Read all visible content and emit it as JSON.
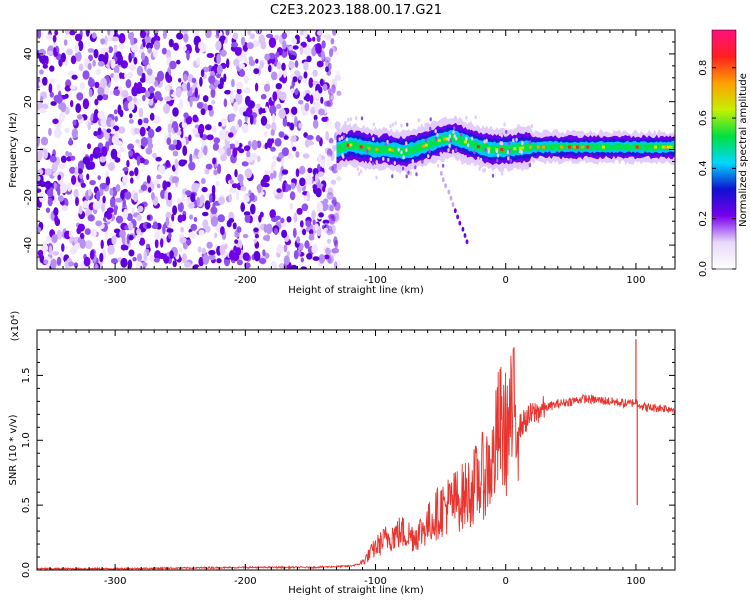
{
  "title": "C2E3.2023.188.00.17.G21",
  "colors": {
    "snr_line": "#e8352f",
    "colorbar_stops": [
      "#ffffff",
      "#e8d8fa",
      "#7700ee",
      "#1010d0",
      "#00d8ff",
      "#00e040",
      "#c8f000",
      "#ffa000",
      "#ff2020",
      "#ff1080"
    ]
  },
  "chart_data": [
    {
      "type": "heatmap",
      "name": "spectrogram",
      "xlabel": "Height of straight line (km)",
      "ylabel": "Frequency (Hz)",
      "xlim": [
        -360,
        130
      ],
      "ylim": [
        -50,
        50
      ],
      "xticks": [
        -300,
        -200,
        -100,
        0,
        100
      ],
      "yticks": [
        -40,
        -20,
        0,
        20,
        40
      ],
      "xtick_labels": [
        "-300",
        "-200",
        "-100",
        "0",
        "100"
      ],
      "ytick_labels": [
        "-40",
        "-20",
        "0",
        "20",
        "40"
      ],
      "noise_region_x": [
        -360,
        -128
      ],
      "signal_track": {
        "x": [
          -130,
          -120,
          -110,
          -100,
          -90,
          -80,
          -70,
          -60,
          -50,
          -40,
          -30,
          -20,
          -10,
          0,
          20,
          40,
          60,
          80,
          100,
          130
        ],
        "freq": [
          0,
          2,
          1,
          0,
          0,
          -1,
          0,
          2,
          4,
          5,
          3,
          1,
          0,
          0,
          1,
          1,
          1,
          1,
          1,
          1
        ]
      },
      "colorbar": {
        "label": "Normalized spectral amplitude",
        "range": [
          0,
          0.95
        ],
        "ticks": [
          0.0,
          0.2,
          0.4,
          0.6,
          0.8
        ],
        "tick_labels": [
          "0.0",
          "0.2",
          "0.4",
          "0.6",
          "0.8"
        ]
      }
    },
    {
      "type": "line",
      "name": "snr",
      "xlabel": "Height of straight line (km)",
      "ylabel": "SNR (10 * v/v)",
      "scale_note": "(x10⁴)",
      "xlim": [
        -360,
        130
      ],
      "ylim": [
        0,
        1.85
      ],
      "xticks": [
        -300,
        -200,
        -100,
        0,
        100
      ],
      "yticks": [
        0.0,
        0.5,
        1.0,
        1.5
      ],
      "xtick_labels": [
        "-300",
        "-200",
        "-100",
        "0",
        "100"
      ],
      "ytick_labels": [
        "0.0",
        "0.5",
        "1.0",
        "1.5"
      ],
      "series": [
        {
          "name": "SNR",
          "x": [
            -360,
            -300,
            -200,
            -150,
            -120,
            -110,
            -100,
            -90,
            -80,
            -70,
            -60,
            -50,
            -40,
            -30,
            -20,
            -10,
            -5,
            0,
            5,
            10,
            20,
            30,
            40,
            60,
            80,
            95,
            100,
            105,
            110,
            120,
            130
          ],
          "y": [
            0.01,
            0.01,
            0.02,
            0.02,
            0.03,
            0.05,
            0.15,
            0.22,
            0.25,
            0.22,
            0.3,
            0.4,
            0.45,
            0.5,
            0.6,
            0.7,
            0.95,
            0.9,
            1.0,
            1.1,
            1.2,
            1.25,
            1.28,
            1.32,
            1.3,
            1.28,
            1.3,
            1.26,
            1.25,
            1.25,
            1.24
          ]
        }
      ],
      "spikes": [
        {
          "x": 100,
          "y": 1.78
        },
        {
          "x": 101,
          "y": 0.5
        }
      ]
    }
  ]
}
